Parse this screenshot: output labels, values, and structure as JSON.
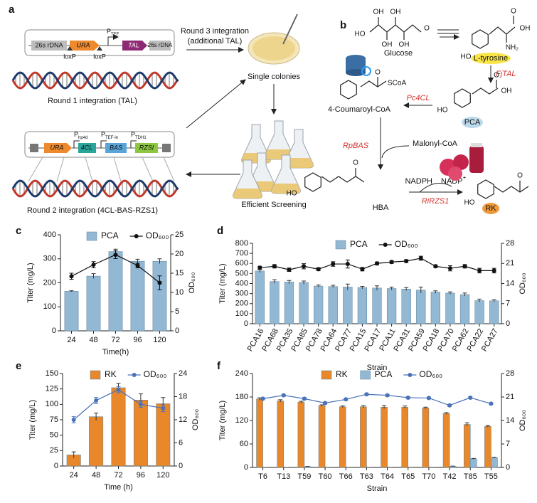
{
  "diagram_a": {
    "label": "a",
    "construct1": [
      "26s rDNA",
      "URA",
      "TAL",
      "26s rDNA"
    ],
    "promoter1": {
      "p": "P",
      "sub": "TEF"
    },
    "loxp": [
      "loxP",
      "loxP"
    ],
    "round1": "Round 1 integration (TAL)",
    "round3": [
      "Round 3 integration",
      "(additional TAL)"
    ],
    "colonies": "Single colonies",
    "screening": "Efficient Screening",
    "construct2": [
      "URA",
      "4CL",
      "BAS",
      "RZSI"
    ],
    "promoters2": [
      {
        "p": "P",
        "sub": "hp4d"
      },
      {
        "p": "P",
        "sub": "TEF-in"
      },
      {
        "p": "P",
        "sub": "TDH1"
      }
    ],
    "round2": "Round 2 integration (4CL-BAS-RZS1)"
  },
  "diagram_b": {
    "label": "b",
    "glucose": "Glucose",
    "tyrosine": "L-tyrosine",
    "tal": "FjTAL",
    "pca": "PCA",
    "cl": "Pc4CL",
    "coumaroyl": "4-Coumaroyl-CoA",
    "scoa": "SCoA",
    "bas": "RpBAS",
    "malonyl": "Malonyl-CoA",
    "hba": "HBA",
    "nadph": "NADPH",
    "nadp": "NADP",
    "nadp_sup": "+",
    "rzs": "RiRZS1",
    "rk": "RK",
    "atoms": [
      "HO",
      "OH",
      "OH",
      "OH",
      "OH",
      "O",
      "HO",
      "O",
      "OH",
      "NH₂",
      "HO",
      "O",
      "OH",
      "O",
      "HO",
      "O",
      "HO",
      "O"
    ]
  },
  "chart_data": [
    {
      "type": "bar",
      "panel_label": "c",
      "x_label": "Time(h)",
      "y_label": "Titer (mg/L)",
      "y2_label": "OD₆₀₀",
      "categories": [
        "24",
        "48",
        "72",
        "96",
        "120"
      ],
      "series": [
        {
          "name": "PCA",
          "color": "#92b8d3",
          "values": [
            165,
            228,
            330,
            290,
            290
          ],
          "errors": [
            2,
            10,
            10,
            8,
            10
          ]
        },
        {
          "name": "OD₆₀₀",
          "color": "#111111",
          "axis": "y2",
          "values": [
            14.2,
            17.2,
            19.8,
            17.0,
            12.5
          ],
          "errors": [
            0.8,
            0.8,
            1.0,
            0.6,
            1.8
          ]
        }
      ],
      "ylim": [
        0,
        400
      ],
      "yticks": [
        0,
        100,
        200,
        300,
        400
      ],
      "y2lim": [
        0,
        25
      ],
      "y2ticks": [
        0,
        5,
        10,
        15,
        20,
        25
      ],
      "legend": "top"
    },
    {
      "type": "bar",
      "panel_label": "d",
      "x_label": "Strain",
      "y_label": "Titer (mg/L)",
      "y2_label": "OD₆₀₀",
      "categories": [
        "PCA16",
        "PCA68",
        "PCA35",
        "PCA85",
        "PCA78",
        "PCA64",
        "PCA77",
        "PCA15",
        "PCA17",
        "PCA11",
        "PCA31",
        "PCA59",
        "PCA18",
        "PCA70",
        "PCA62",
        "PCA22",
        "PCA27"
      ],
      "series": [
        {
          "name": "PCA",
          "color": "#92b8d3",
          "values": [
            525,
            420,
            415,
            410,
            375,
            370,
            365,
            360,
            355,
            350,
            345,
            335,
            315,
            305,
            290,
            230,
            228
          ],
          "errors": [
            15,
            18,
            15,
            15,
            10,
            12,
            30,
            12,
            22,
            15,
            15,
            30,
            12,
            12,
            15,
            15,
            10
          ]
        },
        {
          "name": "OD₆₀₀",
          "color": "#111111",
          "axis": "y2",
          "values": [
            19.5,
            20.0,
            18.8,
            20.0,
            19.0,
            20.8,
            20.8,
            19.0,
            21.0,
            21.5,
            21.8,
            22.8,
            20.0,
            19.3,
            20.0,
            18.5,
            18.5
          ],
          "errors": [
            0.5,
            0.6,
            0.6,
            0.9,
            0.5,
            0.8,
            1.4,
            0.6,
            0.5,
            0.5,
            0.5,
            0.7,
            0.5,
            0.9,
            0.6,
            0.8,
            0.8
          ]
        }
      ],
      "ylim": [
        0,
        800
      ],
      "yticks": [
        0,
        100,
        200,
        300,
        400,
        500,
        600,
        700,
        800
      ],
      "y2lim": [
        0,
        28
      ],
      "y2ticks": [
        0,
        7,
        14,
        21,
        28
      ],
      "legend": "top"
    },
    {
      "type": "bar",
      "panel_label": "e",
      "x_label": "Time (h)",
      "y_label": "Titer (mg/L)",
      "y2_label": "OD₆₀₀",
      "categories": [
        "24",
        "48",
        "72",
        "96",
        "120"
      ],
      "series": [
        {
          "name": "RK",
          "color": "#e8882b",
          "values": [
            18,
            80,
            127,
            107,
            101
          ],
          "errors": [
            5,
            6,
            7,
            10,
            10
          ]
        },
        {
          "name": "OD₆₀₀",
          "color": "#4a72b8",
          "axis": "y2",
          "values": [
            12,
            17,
            19.8,
            16,
            15
          ],
          "errors": [
            0.8,
            0.8,
            0.8,
            0.8,
            0.9
          ]
        }
      ],
      "ylim": [
        0,
        150
      ],
      "yticks": [
        0,
        25,
        50,
        75,
        100,
        125,
        150
      ],
      "y2lim": [
        0,
        24
      ],
      "y2ticks": [
        0,
        6,
        12,
        18,
        24
      ],
      "legend": "top"
    },
    {
      "type": "bar",
      "panel_label": "f",
      "x_label": "Strain",
      "y_label": "Titer (mg/L)",
      "y2_label": "OD₆₀₀",
      "categories": [
        "T6",
        "T13",
        "T59",
        "T60",
        "T66",
        "T63",
        "T64",
        "T65",
        "T70",
        "T42",
        "T85",
        "T55"
      ],
      "series": [
        {
          "name": "RK",
          "color": "#e8882b",
          "values": [
            175,
            170,
            167,
            158,
            155,
            155,
            154,
            154,
            152,
            138,
            110,
            105
          ],
          "errors": [
            3,
            3,
            2,
            2,
            2,
            3,
            4,
            3,
            2,
            2,
            4,
            2
          ]
        },
        {
          "name": "PCA",
          "color": "#92b8d3",
          "values": [
            0,
            0,
            2,
            0,
            0,
            0,
            0,
            0,
            0,
            3,
            22,
            25
          ],
          "errors": [
            0,
            0,
            0.5,
            0,
            0,
            0,
            0,
            0,
            0,
            0.5,
            1,
            1
          ]
        },
        {
          "name": "OD₆₀₀",
          "color": "#4a72b8",
          "axis": "y2",
          "values": [
            20.5,
            21.5,
            20.5,
            19.2,
            20.3,
            21.8,
            21.5,
            20.8,
            20.7,
            18.5,
            20.8,
            19.0
          ],
          "errors": [
            0.3,
            0.3,
            0.3,
            0.3,
            0.3,
            0.3,
            0.3,
            0.3,
            0.3,
            0.3,
            0.3,
            0.3
          ]
        }
      ],
      "ylim": [
        0,
        240
      ],
      "yticks": [
        0,
        60,
        120,
        180,
        240
      ],
      "y2lim": [
        0,
        28
      ],
      "y2ticks": [
        0,
        7,
        14,
        21,
        28
      ],
      "legend": "top"
    }
  ]
}
